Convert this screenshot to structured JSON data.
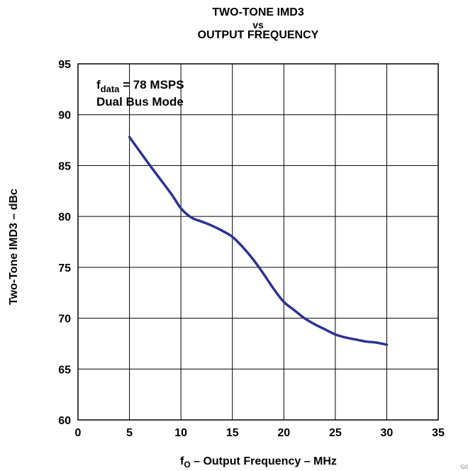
{
  "chart_data": {
    "type": "line",
    "title": [
      "TWO-TONE IMD3",
      "vs",
      "OUTPUT FREQUENCY"
    ],
    "xlabel_prefix": "f",
    "xlabel_sub": "O",
    "xlabel_rest": " – Output Frequency – MHz",
    "ylabel": "Two-Tone IMD3 – dBc",
    "xlim": [
      0,
      35
    ],
    "ylim": [
      60,
      95
    ],
    "xticks": [
      0,
      5,
      10,
      15,
      20,
      25,
      30,
      35
    ],
    "yticks": [
      60,
      65,
      70,
      75,
      80,
      85,
      90,
      95
    ],
    "grid": true,
    "annotation": {
      "line1_main": "f",
      "line1_sub": "data",
      "line1_rest": " = 78 MSPS",
      "line2": "Dual Bus Mode"
    },
    "series": [
      {
        "color": "#2E3192",
        "x": [
          5,
          7,
          9,
          10,
          11,
          12,
          13,
          14,
          15,
          16,
          17,
          18,
          19,
          20,
          21,
          22,
          23,
          24,
          25,
          26,
          27,
          28,
          29,
          30
        ],
        "y": [
          87.8,
          85.0,
          82.3,
          80.8,
          79.9,
          79.5,
          79.1,
          78.6,
          78.0,
          77.0,
          75.8,
          74.4,
          72.9,
          71.6,
          70.8,
          70.0,
          69.4,
          68.9,
          68.4,
          68.1,
          67.9,
          67.7,
          67.6,
          67.4
        ]
      }
    ]
  },
  "figure_id": "G0"
}
